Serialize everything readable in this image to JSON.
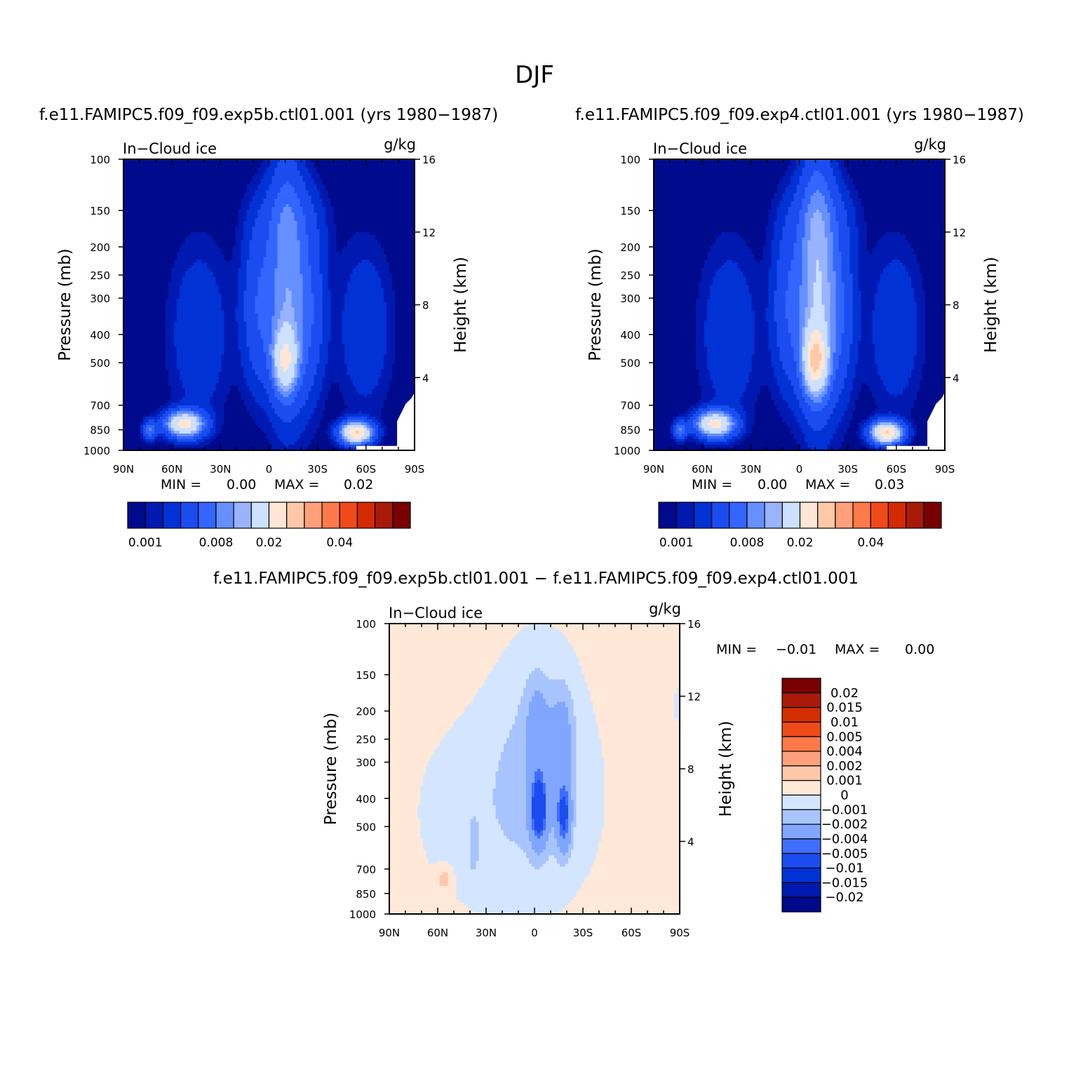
{
  "page_title": "DJF",
  "colors": {
    "abs_palette": [
      "#000a8c",
      "#0019b0",
      "#0032d6",
      "#1a4cf0",
      "#3366ff",
      "#6690ff",
      "#99b3ff",
      "#cce0ff",
      "#ffe6d5",
      "#ffc8a8",
      "#ffa07a",
      "#ff7a4a",
      "#f04a1a",
      "#d42a00",
      "#a81a08",
      "#780000"
    ],
    "diff_palette": [
      "#00088c",
      "#0019b0",
      "#0033d6",
      "#1a4cf0",
      "#3f6dff",
      "#80a6ff",
      "#a8c4ff",
      "#d4e6ff",
      "#ffe8d8",
      "#ffc8aa",
      "#ffa07c",
      "#ff7a48",
      "#f04a18",
      "#d22e00",
      "#a81a0a",
      "#7a0000"
    ]
  },
  "chart_data": [
    {
      "type": "heatmap",
      "title": "f.e11.FAMIPC5.f09_f09.exp5b.ctl01.001 (yrs 1980-1987)",
      "left_label": "In-Cloud ice",
      "right_label": "g/kg",
      "ylabel": "Pressure (mb)",
      "ylabel2": "Height (km)",
      "x_ticks": [
        "90N",
        "60N",
        "30N",
        "0",
        "30S",
        "60S",
        "90S"
      ],
      "y_ticks": [
        "100",
        "150",
        "200",
        "250",
        "300",
        "400",
        "500",
        "700",
        "850",
        "1000"
      ],
      "y2_ticks": [
        "16",
        "12",
        "8",
        "4"
      ],
      "min_label": "MIN =",
      "min_value": "0.00",
      "max_label": "MAX =",
      "max_value": "0.02",
      "colorbar_labels": [
        "0.001",
        "0.008",
        "0.02",
        "0.04"
      ]
    },
    {
      "type": "heatmap",
      "title": "f.e11.FAMIPC5.f09_f09.exp4.ctl01.001 (yrs 1980-1987)",
      "left_label": "In-Cloud ice",
      "right_label": "g/kg",
      "ylabel": "Pressure (mb)",
      "ylabel2": "Height (km)",
      "x_ticks": [
        "90N",
        "60N",
        "30N",
        "0",
        "30S",
        "60S",
        "90S"
      ],
      "y_ticks": [
        "100",
        "150",
        "200",
        "250",
        "300",
        "400",
        "500",
        "700",
        "850",
        "1000"
      ],
      "y2_ticks": [
        "16",
        "12",
        "8",
        "4"
      ],
      "min_label": "MIN =",
      "min_value": "0.00",
      "max_label": "MAX =",
      "max_value": "0.03",
      "colorbar_labels": [
        "0.001",
        "0.008",
        "0.02",
        "0.04"
      ]
    },
    {
      "type": "heatmap",
      "title": "f.e11.FAMIPC5.f09_f09.exp5b.ctl01.001 - f.e11.FAMIPC5.f09_f09.exp4.ctl01.001",
      "left_label": "In-Cloud ice",
      "right_label": "g/kg",
      "ylabel": "Pressure (mb)",
      "ylabel2": "Height (km)",
      "x_ticks": [
        "90N",
        "60N",
        "30N",
        "0",
        "30S",
        "60S",
        "90S"
      ],
      "y_ticks": [
        "100",
        "150",
        "200",
        "250",
        "300",
        "400",
        "500",
        "700",
        "850",
        "1000"
      ],
      "y2_ticks": [
        "16",
        "12",
        "8",
        "4"
      ],
      "min_label": "MIN =",
      "min_value": "-0.01",
      "max_label": "MAX =",
      "max_value": "0.00",
      "colorbar_labels": [
        "0.02",
        "0.015",
        "0.01",
        "0.005",
        "0.004",
        "0.002",
        "0.001",
        "0",
        "-0.001",
        "-0.002",
        "-0.004",
        "-0.005",
        "-0.01",
        "-0.015",
        "-0.02"
      ]
    }
  ]
}
